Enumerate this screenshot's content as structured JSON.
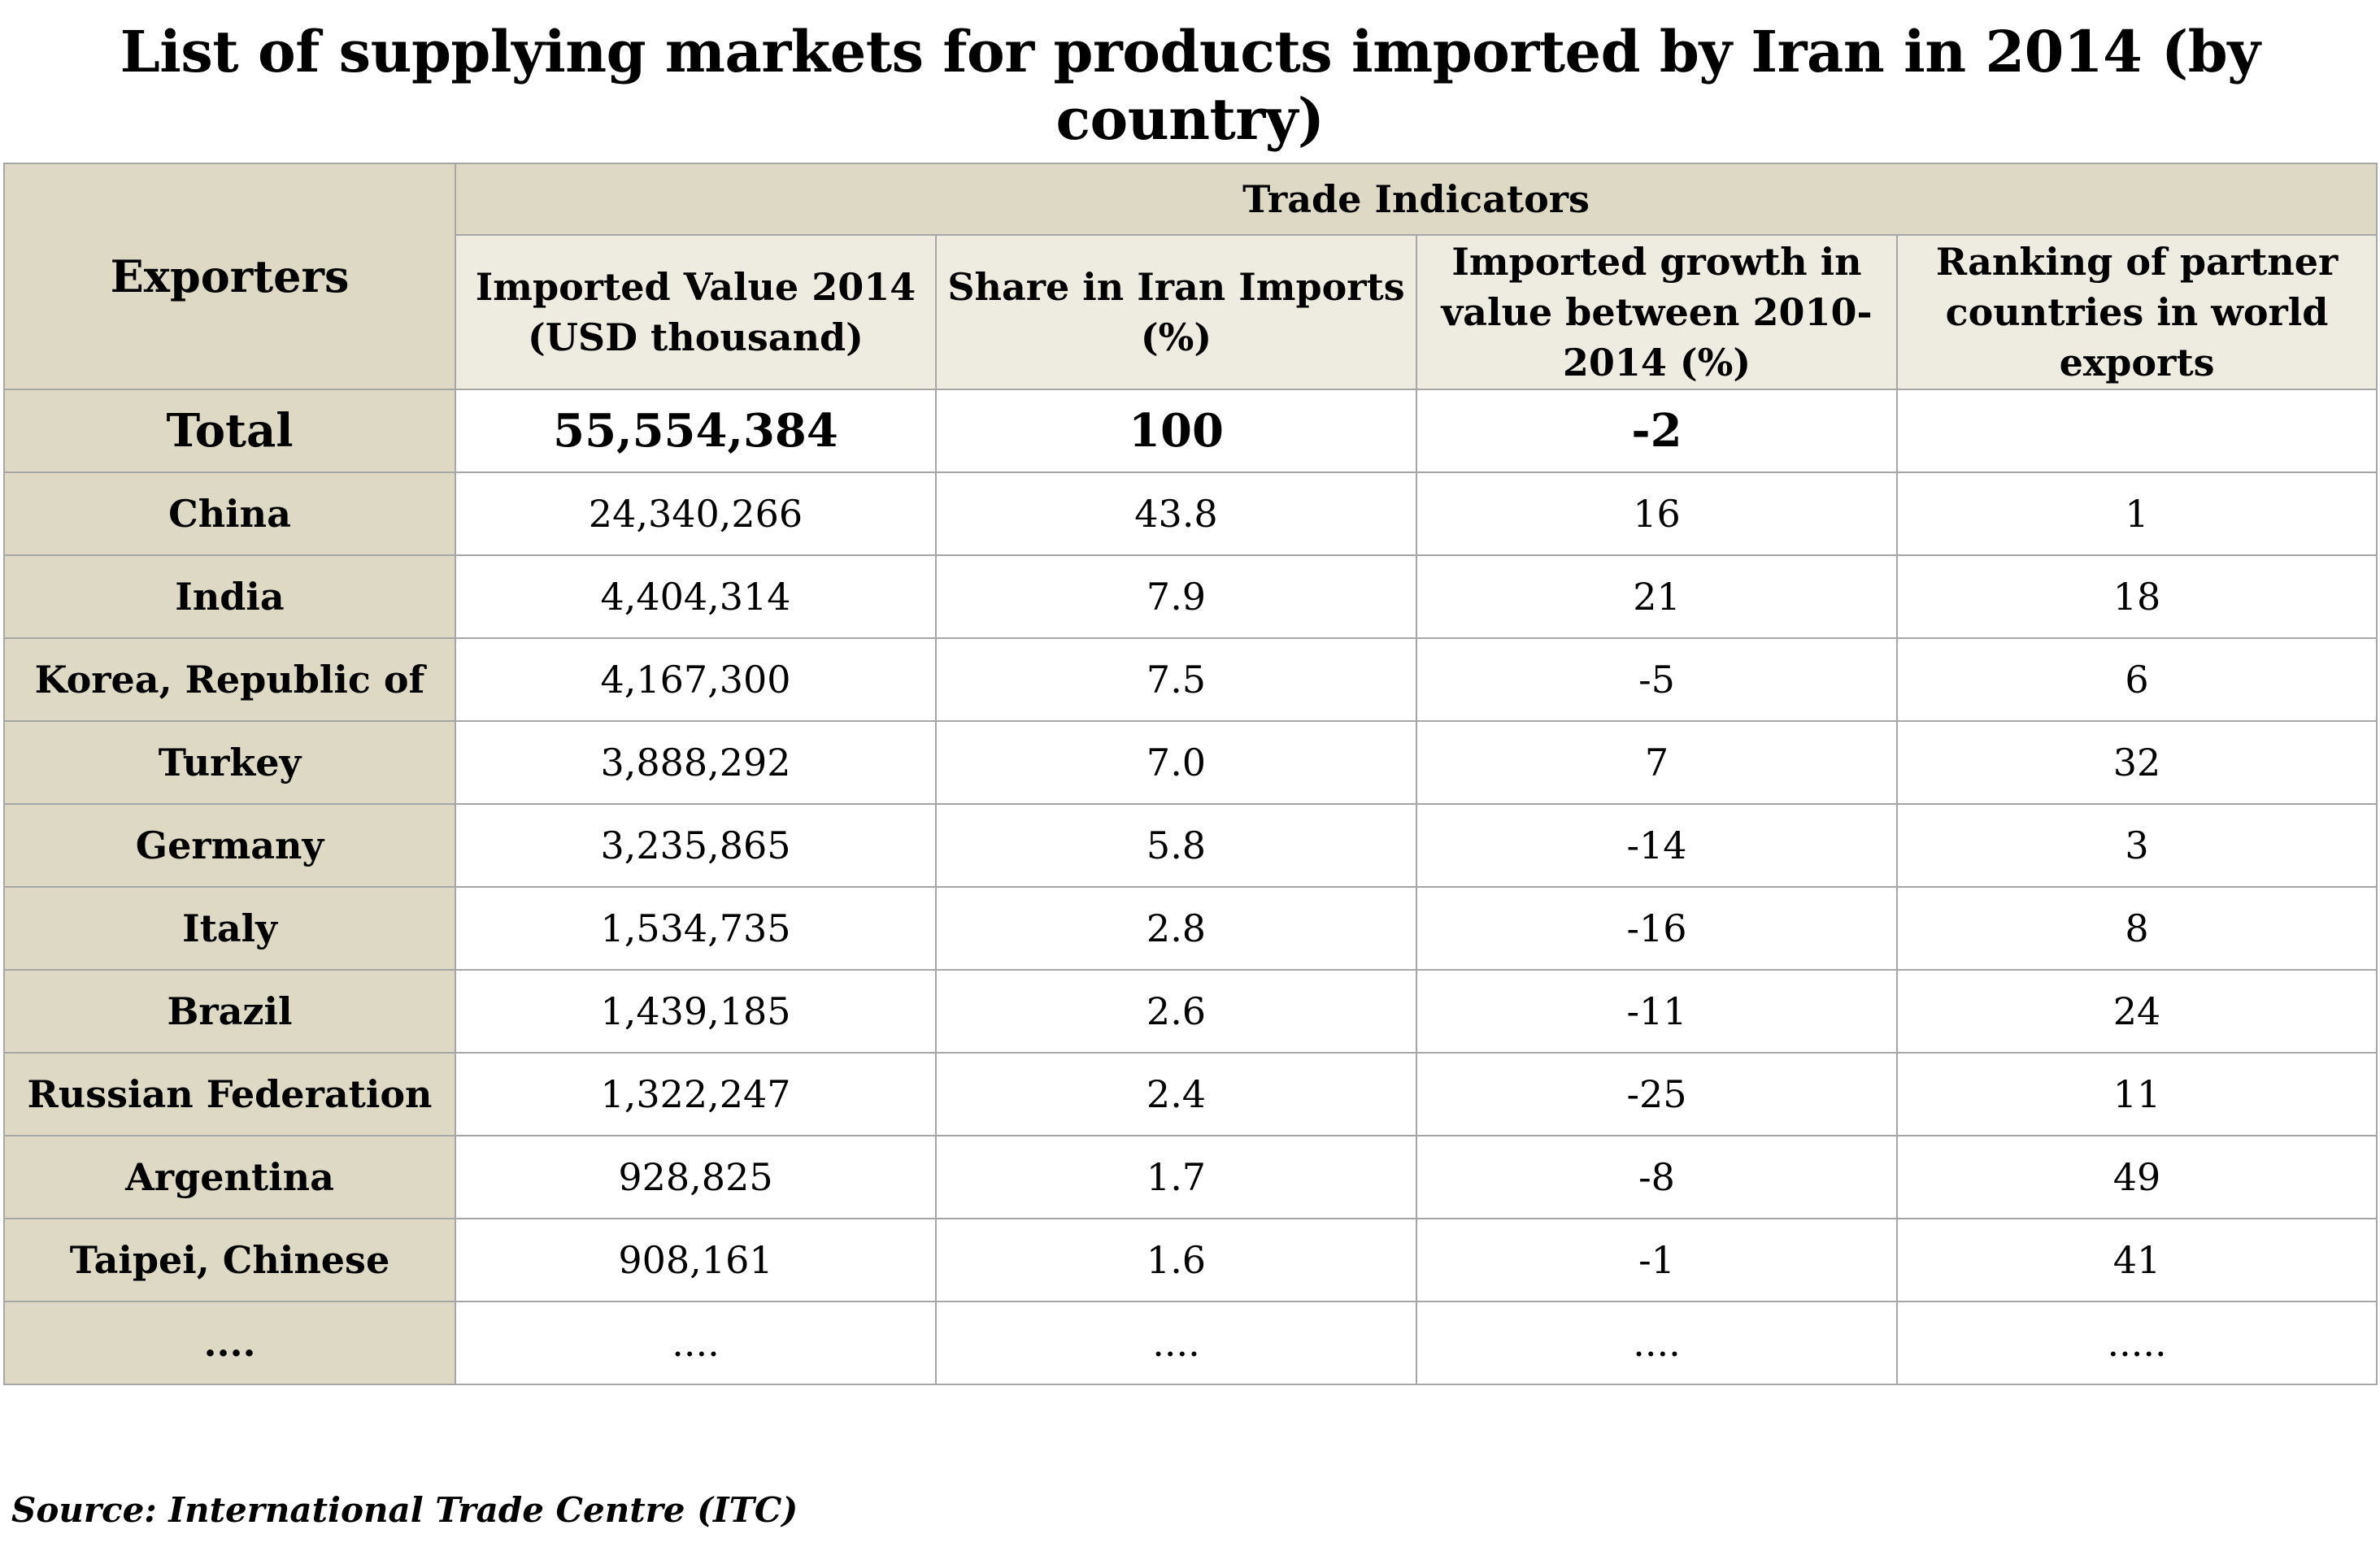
{
  "title": "List of supplying markets for products imported by Iran in 2014 (by country)",
  "table": {
    "exporters_header": "Exporters",
    "group_header": "Trade Indicators",
    "columns": [
      "Imported Value 2014 (USD thousand)",
      "Share in Iran Imports (%)",
      "Imported growth in value between 2010-2014 (%)",
      "Ranking of partner countries in world exports"
    ],
    "total": {
      "label": "Total",
      "value": "55,554,384",
      "share": "100",
      "growth": "-2",
      "rank": ""
    },
    "rows": [
      {
        "country": "China",
        "value": "24,340,266",
        "share": "43.8",
        "growth": "16",
        "rank": "1"
      },
      {
        "country": "India",
        "value": "4,404,314",
        "share": "7.9",
        "growth": "21",
        "rank": "18"
      },
      {
        "country": "Korea, Republic of",
        "value": "4,167,300",
        "share": "7.5",
        "growth": "-5",
        "rank": "6"
      },
      {
        "country": "Turkey",
        "value": "3,888,292",
        "share": "7.0",
        "growth": "7",
        "rank": "32"
      },
      {
        "country": "Germany",
        "value": "3,235,865",
        "share": "5.8",
        "growth": "-14",
        "rank": "3"
      },
      {
        "country": "Italy",
        "value": "1,534,735",
        "share": "2.8",
        "growth": "-16",
        "rank": "8"
      },
      {
        "country": "Brazil",
        "value": "1,439,185",
        "share": "2.6",
        "growth": "-11",
        "rank": "24"
      },
      {
        "country": "Russian Federation",
        "value": "1,322,247",
        "share": "2.4",
        "growth": "-25",
        "rank": "11"
      },
      {
        "country": "Argentina",
        "value": "928,825",
        "share": "1.7",
        "growth": "-8",
        "rank": "49"
      },
      {
        "country": "Taipei, Chinese",
        "value": "908,161",
        "share": "1.6",
        "growth": "-1",
        "rank": "41"
      },
      {
        "country": "....",
        "value": "....",
        "share": "....",
        "growth": "....",
        "rank": "....."
      }
    ]
  },
  "source": "Source: International Trade Centre (ITC)",
  "colors": {
    "header_band": "#ddd9c4",
    "header_sub": "#eeece1",
    "border": "#a6a6a6"
  }
}
